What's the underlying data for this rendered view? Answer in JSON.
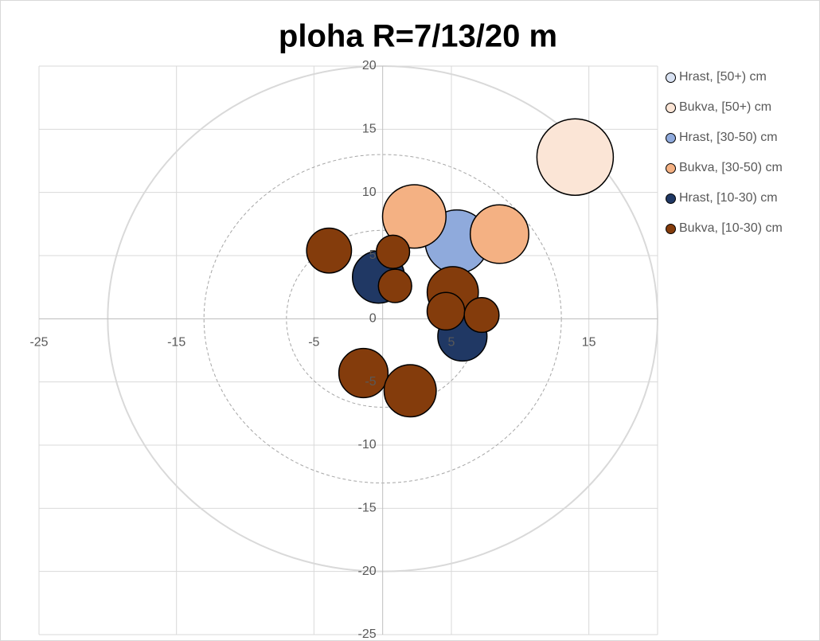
{
  "chart_data": {
    "type": "bubble",
    "title": "ploha R=7/13/20 m",
    "xlim": [
      -25,
      20
    ],
    "ylim": [
      -25,
      20
    ],
    "xticks": [
      -25,
      -15,
      -5,
      5,
      15
    ],
    "yticks": [
      -25,
      -20,
      -15,
      -10,
      -5,
      0,
      5,
      10,
      15,
      20
    ],
    "grid": true,
    "legend": "right",
    "circles": [
      7,
      13,
      20
    ],
    "series": [
      {
        "name": "Hrast, [50+) cm",
        "color": "#dae3f3",
        "x": [],
        "values": [],
        "sizes": []
      },
      {
        "name": "Bukva, [50+) cm",
        "color": "#fbe5d6",
        "x": [
          14
        ],
        "values": [
          12.8
        ],
        "sizes": [
          58
        ]
      },
      {
        "name": "Hrast, [30-50) cm",
        "color": "#8faadc",
        "x": [
          5.4
        ],
        "values": [
          6.1
        ],
        "sizes": [
          40
        ]
      },
      {
        "name": "Bukva, [30-50) cm",
        "color": "#f4b183",
        "x": [
          2.3,
          8.5
        ],
        "values": [
          8.1,
          6.7
        ],
        "sizes": [
          40,
          34
        ]
      },
      {
        "name": "Hrast, [10-30) cm",
        "color": "#203864",
        "x": [
          -0.3,
          5.8
        ],
        "values": [
          3.3,
          -1.4
        ],
        "sizes": [
          27,
          24
        ]
      },
      {
        "name": "Bukva, [10-30) cm",
        "color": "#843c0c",
        "x": [
          -3.9,
          0.75,
          0.9,
          5.1,
          4.6,
          7.2,
          -1.4,
          2.0
        ],
        "values": [
          5.4,
          5.3,
          2.6,
          2.1,
          0.6,
          0.3,
          -4.3,
          -5.7
        ],
        "sizes": [
          20,
          11,
          11,
          26,
          14,
          12,
          24,
          27
        ]
      }
    ]
  }
}
